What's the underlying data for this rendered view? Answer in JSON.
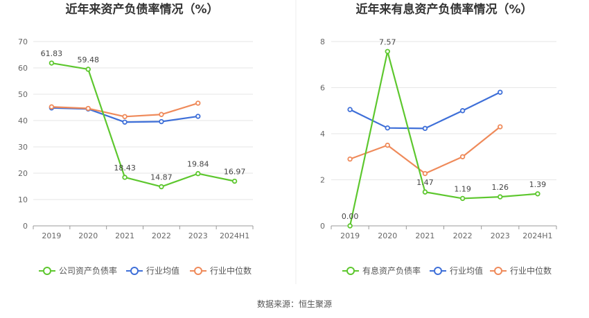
{
  "source": "数据来源：恒生聚源",
  "chart_data": [
    {
      "type": "line",
      "title": "近年来资产负债率情况（%）",
      "categories": [
        "2019",
        "2020",
        "2021",
        "2022",
        "2023",
        "2024H1"
      ],
      "ylim": [
        0,
        70
      ],
      "yticks": [
        0,
        10,
        20,
        30,
        40,
        50,
        60,
        70
      ],
      "grid": true,
      "legend": "bottom",
      "series": [
        {
          "name": "公司资产负债率",
          "color": "#5dc72e",
          "values": [
            61.83,
            59.48,
            18.43,
            14.87,
            19.84,
            16.97
          ],
          "labels": [
            "61.83",
            "59.48",
            "18.43",
            "14.87",
            "19.84",
            "16.97"
          ]
        },
        {
          "name": "行业均值",
          "color": "#3e6fd8",
          "values": [
            44.8,
            44.4,
            39.4,
            39.6,
            41.6,
            null
          ]
        },
        {
          "name": "行业中位数",
          "color": "#ef8a5a",
          "values": [
            45.2,
            44.6,
            41.5,
            42.3,
            46.6,
            null
          ]
        }
      ]
    },
    {
      "type": "line",
      "title": "近年来有息资产负债率情况（%）",
      "categories": [
        "2019",
        "2020",
        "2021",
        "2022",
        "2023",
        "2024H1"
      ],
      "ylim": [
        0,
        8
      ],
      "yticks": [
        0,
        2,
        4,
        6,
        8
      ],
      "grid": true,
      "legend": "bottom",
      "series": [
        {
          "name": "有息资产负债率",
          "color": "#5dc72e",
          "values": [
            0.0,
            7.57,
            1.47,
            1.19,
            1.26,
            1.39
          ],
          "labels": [
            "0.00",
            "7.57",
            "1.47",
            "1.19",
            "1.26",
            "1.39"
          ]
        },
        {
          "name": "行业均值",
          "color": "#3e6fd8",
          "values": [
            5.05,
            4.25,
            4.23,
            5.0,
            5.8,
            null
          ]
        },
        {
          "name": "行业中位数",
          "color": "#ef8a5a",
          "values": [
            2.9,
            3.5,
            2.27,
            3.0,
            4.3,
            null
          ]
        }
      ]
    }
  ]
}
